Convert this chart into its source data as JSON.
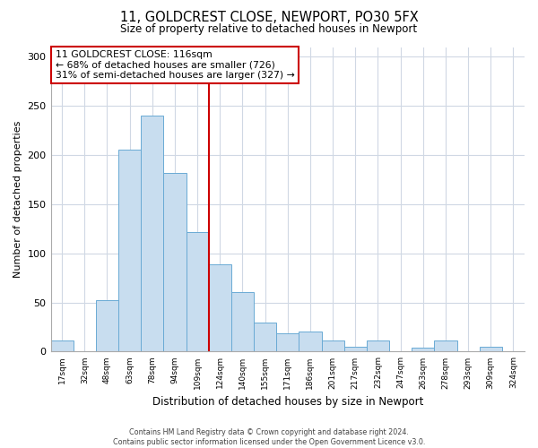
{
  "title": "11, GOLDCREST CLOSE, NEWPORT, PO30 5FX",
  "subtitle": "Size of property relative to detached houses in Newport",
  "xlabel": "Distribution of detached houses by size in Newport",
  "ylabel": "Number of detached properties",
  "bar_labels": [
    "17sqm",
    "32sqm",
    "48sqm",
    "63sqm",
    "78sqm",
    "94sqm",
    "109sqm",
    "124sqm",
    "140sqm",
    "155sqm",
    "171sqm",
    "186sqm",
    "201sqm",
    "217sqm",
    "232sqm",
    "247sqm",
    "263sqm",
    "278sqm",
    "293sqm",
    "309sqm",
    "324sqm"
  ],
  "bar_values": [
    11,
    0,
    52,
    206,
    240,
    182,
    122,
    89,
    61,
    30,
    19,
    20,
    11,
    5,
    11,
    0,
    4,
    11,
    0,
    5,
    0
  ],
  "bar_color": "#c8ddef",
  "bar_edge_color": "#6aaad4",
  "vline_color": "#cc0000",
  "annotation_line1": "11 GOLDCREST CLOSE: 116sqm",
  "annotation_line2": "← 68% of detached houses are smaller (726)",
  "annotation_line3": "31% of semi-detached houses are larger (327) →",
  "annotation_box_color": "#ffffff",
  "annotation_box_edge_color": "#cc0000",
  "ylim": [
    0,
    310
  ],
  "yticks": [
    0,
    50,
    100,
    150,
    200,
    250,
    300
  ],
  "footer_line1": "Contains HM Land Registry data © Crown copyright and database right 2024.",
  "footer_line2": "Contains public sector information licensed under the Open Government Licence v3.0.",
  "bg_color": "#ffffff",
  "grid_color": "#d0d8e4",
  "vline_bar_index": 7,
  "n_bars": 21
}
